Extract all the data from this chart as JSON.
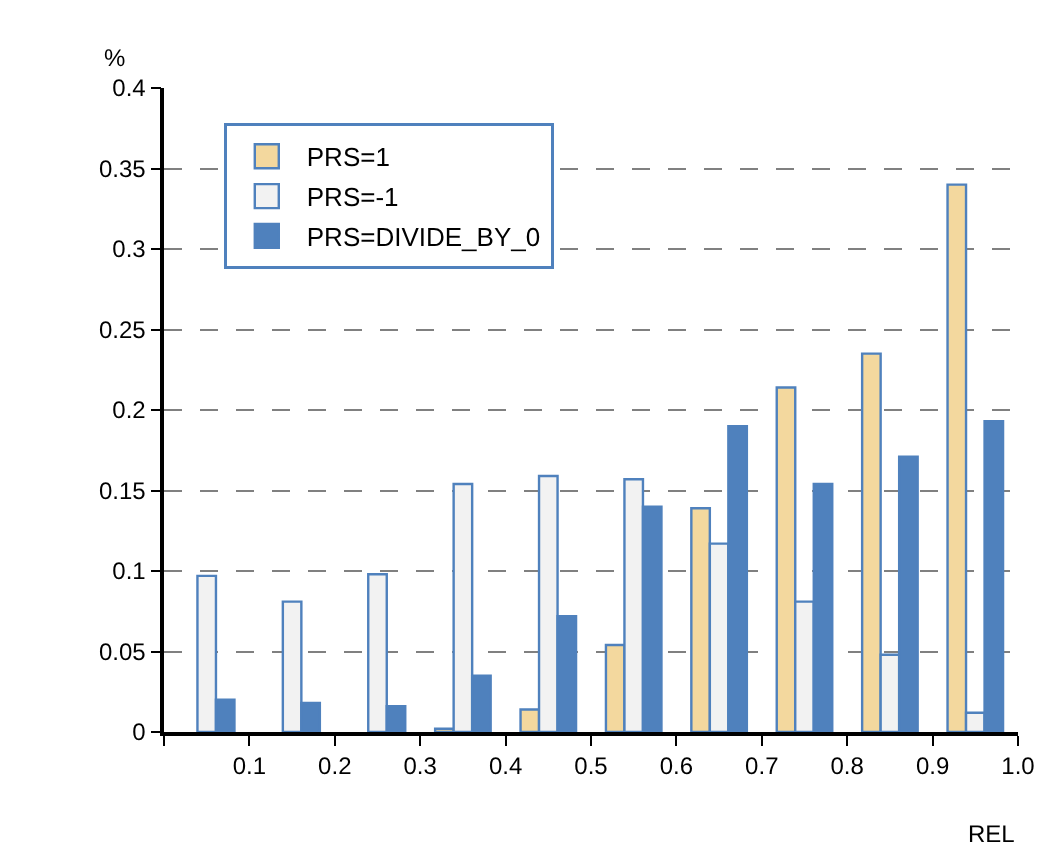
{
  "chart_data": {
    "type": "bar",
    "ylabel": "%",
    "xlabel": "REL",
    "x": [
      0.05,
      0.15,
      0.25,
      0.35,
      0.45,
      0.55,
      0.65,
      0.75,
      0.85,
      0.95
    ],
    "series": [
      {
        "name": "PRS=1",
        "color": "#f3d89e",
        "values": [
          null,
          null,
          null,
          0.002,
          0.014,
          0.054,
          0.139,
          0.214,
          0.235,
          0.34
        ]
      },
      {
        "name": "PRS=-1",
        "color": "#f2f2f2",
        "values": [
          0.097,
          0.081,
          0.098,
          0.154,
          0.159,
          0.157,
          0.117,
          0.081,
          0.048,
          0.012
        ]
      },
      {
        "name": "PRS=DIVIDE_BY_0",
        "color": "#4f81bd",
        "values": [
          0.02,
          0.018,
          0.016,
          0.035,
          0.072,
          0.14,
          0.19,
          0.154,
          0.171,
          0.193
        ]
      }
    ],
    "xlim": [
      0,
      1
    ],
    "xticks": [
      {
        "value": 0,
        "label": null
      },
      {
        "value": 0.1,
        "label": "0.1"
      },
      {
        "value": 0.2,
        "label": "0.2"
      },
      {
        "value": 0.3,
        "label": "0.3"
      },
      {
        "value": 0.4,
        "label": "0.4"
      },
      {
        "value": 0.5,
        "label": "0.5"
      },
      {
        "value": 0.6,
        "label": "0.6"
      },
      {
        "value": 0.7,
        "label": "0.7"
      },
      {
        "value": 0.8,
        "label": "0.8"
      },
      {
        "value": 0.9,
        "label": "0.9"
      },
      {
        "value": 1,
        "label": "1.0"
      }
    ],
    "ylim": [
      0,
      0.4
    ],
    "yticks": [
      0,
      0.05,
      0.1,
      0.15,
      0.2,
      0.25,
      0.3,
      0.35,
      0.4
    ],
    "grid": "y",
    "legend": "top left"
  }
}
